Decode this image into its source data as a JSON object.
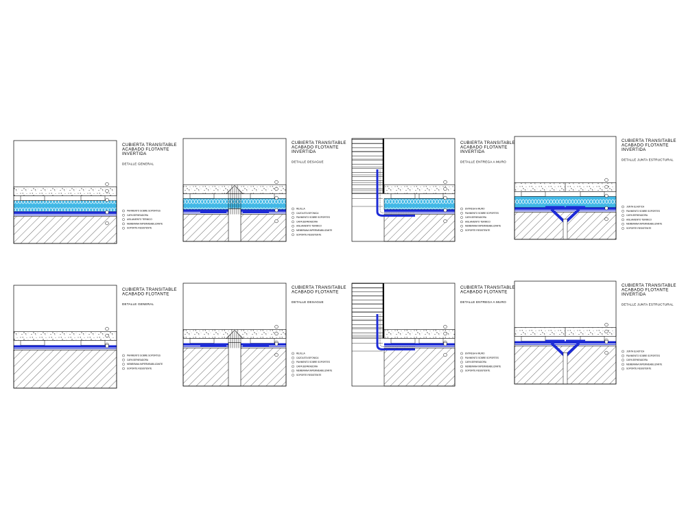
{
  "colors": {
    "membrane": "#1d2bd6",
    "insulation": "#41b8e6",
    "line": "#000000",
    "background": "#ffffff"
  },
  "details": [
    {
      "title_lines": [
        "CUBIERTA TRANSITABLE",
        "ACABADO FLOTANTE",
        "INVERTIDA"
      ],
      "subtitle": "DETALLE GENERAL",
      "legend": [
        "PAVIMENTO SOBRE SOPORTES",
        "CAPA SEPARADORA",
        "AISLAMIENTO TERMICO",
        "MEMBRANA IMPERMEABILIZANTE",
        "SOPORTE RESISTENTE"
      ]
    },
    {
      "title_lines": [
        "CUBIERTA TRANSITABLE",
        "ACABADO FLOTANTE",
        "INVERTIDA"
      ],
      "subtitle": "DETALLE DESAGUE",
      "legend": [
        "REJILLA",
        "CAZOLETA SIFONICA",
        "PAVIMENTO SOBRE SOPORTES",
        "CAPA SEPARADORA",
        "AISLAMIENTO TERMICO",
        "MEMBRANA IMPERMEABILIZANTE",
        "SOPORTE RESISTENTE"
      ]
    },
    {
      "title_lines": [
        "CUBIERTA TRANSITABLE",
        "ACABADO FLOTANTE",
        "INVERTIDA"
      ],
      "subtitle": "DETALLE ENTREGA A MURO",
      "legend": [
        "ENTREGA A MURO",
        "PAVIMENTO SOBRE SOPORTES",
        "CAPA SEPARADORA",
        "AISLAMIENTO TERMICO",
        "MEMBRANA IMPERMEABILIZANTE",
        "SOPORTE RESISTENTE"
      ]
    },
    {
      "title_lines": [
        "CUBIERTA TRANSITABLE",
        "ACABADO FLOTANTE",
        "INVERTIDA"
      ],
      "subtitle": "DETALLE JUNTA ESTRUCTURAL",
      "legend": [
        "JUNTA ELASTICA",
        "PAVIMENTO SOBRE SOPORTES",
        "CAPA SEPARADORA",
        "AISLAMIENTO TERMICO",
        "MEMBRANA IMPERMEABILIZANTE",
        "SOPORTE RESISTENTE"
      ]
    },
    {
      "title_lines": [
        "CUBIERTA TRANSITABLE",
        "ACABADO FLOTANTE"
      ],
      "subtitle": "DETALLE GENERAL",
      "legend": [
        "PAVIMENTO SOBRE SOPORTES",
        "CAPA SEPARADORA",
        "MEMBRANA IMPERMEABILIZANTE",
        "SOPORTE RESISTENTE"
      ]
    },
    {
      "title_lines": [
        "CUBIERTA TRANSITABLE",
        "ACABADO FLOTANTE"
      ],
      "subtitle": "DETALLE DESAGUE",
      "legend": [
        "REJILLA",
        "CAZOLETA SIFONICA",
        "PAVIMENTO SOBRE SOPORTES",
        "CAPA SEPARADORA",
        "MEMBRANA IMPERMEABILIZANTE",
        "SOPORTE RESISTENTE"
      ]
    },
    {
      "title_lines": [
        "CUBIERTA TRANSITABLE",
        "ACABADO FLOTANTE"
      ],
      "subtitle": "DETALLE ENTREGA A MURO",
      "legend": [
        "ENTREGA A MURO",
        "PAVIMENTO SOBRE SOPORTES",
        "CAPA SEPARADORA",
        "MEMBRANA IMPERMEABILIZANTE",
        "SOPORTE RESISTENTE"
      ]
    },
    {
      "title_lines": [
        "CUBIERTA TRANSITABLE",
        "ACABADO FLOTANTE",
        "INVERTIDA"
      ],
      "subtitle": "DETALLE JUNTA ESTRUCTURAL",
      "legend": [
        "JUNTA ELASTICA",
        "PAVIMENTO SOBRE SOPORTES",
        "CAPA SEPARADORA",
        "MEMBRANA IMPERMEABILIZANTE",
        "SOPORTE RESISTENTE"
      ]
    }
  ]
}
